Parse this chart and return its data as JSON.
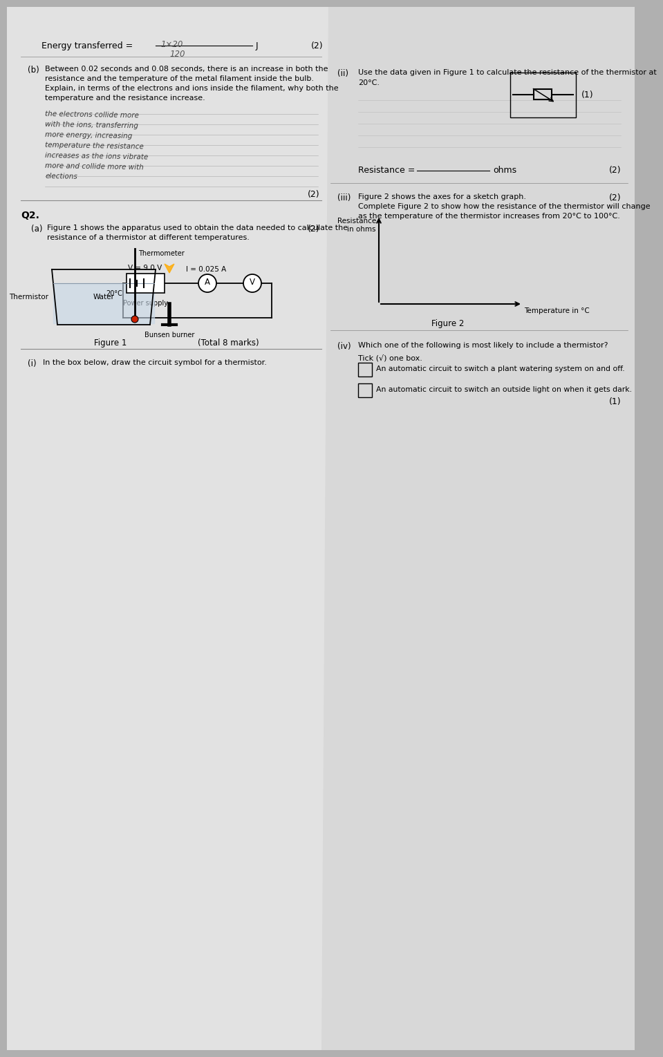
{
  "bg_color": "#c8c8c8",
  "page_bg_left": "#e0e0e0",
  "page_bg_right": "#dcdcdc",
  "left_page": {
    "top_label": "Energy transferred =",
    "top_answer": "1×20",
    "top_answer2": "120",
    "top_unit": "J",
    "marks_top": "(2)",
    "b_label": "(b)",
    "b_text1": "Between 0.02 seconds and 0.08 seconds, there is an increase in both the",
    "b_text2": "resistance and the temperature of the metal filament inside the bulb.",
    "b_text3": "Explain, in terms of the electrons and ions inside the filament, why both the",
    "b_text4": "temperature and the resistance increase.",
    "handwritten": [
      "the electrons collide more",
      "with the ions, transferring",
      "more energy, increasing",
      "temperature the resistance",
      "increases as the ions vibrate",
      "more and collide more with",
      "elections"
    ],
    "marks_b": "(2)",
    "q2_label": "Q2.",
    "a_label": "(a)",
    "fig1_text1": "Figure 1 shows the apparatus used to obtain the data needed to calculate the",
    "fig1_text2": "resistance of a thermistor at different temperatures.",
    "figure1_label": "Figure 1",
    "total_marks": "(Total 8 marks)",
    "marks_a": "(2)",
    "circuit": {
      "ammeter_label": "I = 0.025 A",
      "voltmeter_label": "V = 9.0 V",
      "power_supply_label": "Power supply",
      "water_label": "Water",
      "thermometer_label": "Thermometer",
      "thermistor_label": "Thermistor",
      "bunsen_label": "Bunsen burner",
      "temp_label": "20°C"
    },
    "i_label": "(i)",
    "i_text": "In the box below, draw the circuit symbol for a thermistor."
  },
  "right_page": {
    "ii_label": "(ii)",
    "ii_text1": "Use the data given in Figure 1 to calculate the resistance of the thermistor at",
    "ii_text2": "20°C.",
    "marks_ii": "(1)",
    "resistance_label": "Resistance =",
    "resistance_unit": "ohms",
    "marks_ii2": "(2)",
    "iii_label": "(iii)",
    "iii_text1": "Figure 2 shows the axes for a sketch graph.",
    "iii_text2": "Complete Figure 2 to show how the resistance of the thermistor will change",
    "iii_text3": "as the temperature of the thermistor increases from 20°C to 100°C.",
    "figure2_label": "Figure 2",
    "fig2_ylabel": "Resistance\nin ohms",
    "fig2_xlabel": "Temperature in °C",
    "marks_iii": "(2)",
    "iv_label": "(iv)",
    "iv_text": "Which one of the following is most likely to include a thermistor?",
    "tick_text": "Tick (√) one box.",
    "option1": "An automatic circuit to switch a plant watering system on and off.",
    "option2": "An automatic circuit to switch an outside light on when it gets dark.",
    "marks_iv": "(1)",
    "thermistor_symbol_label": "(1)"
  }
}
